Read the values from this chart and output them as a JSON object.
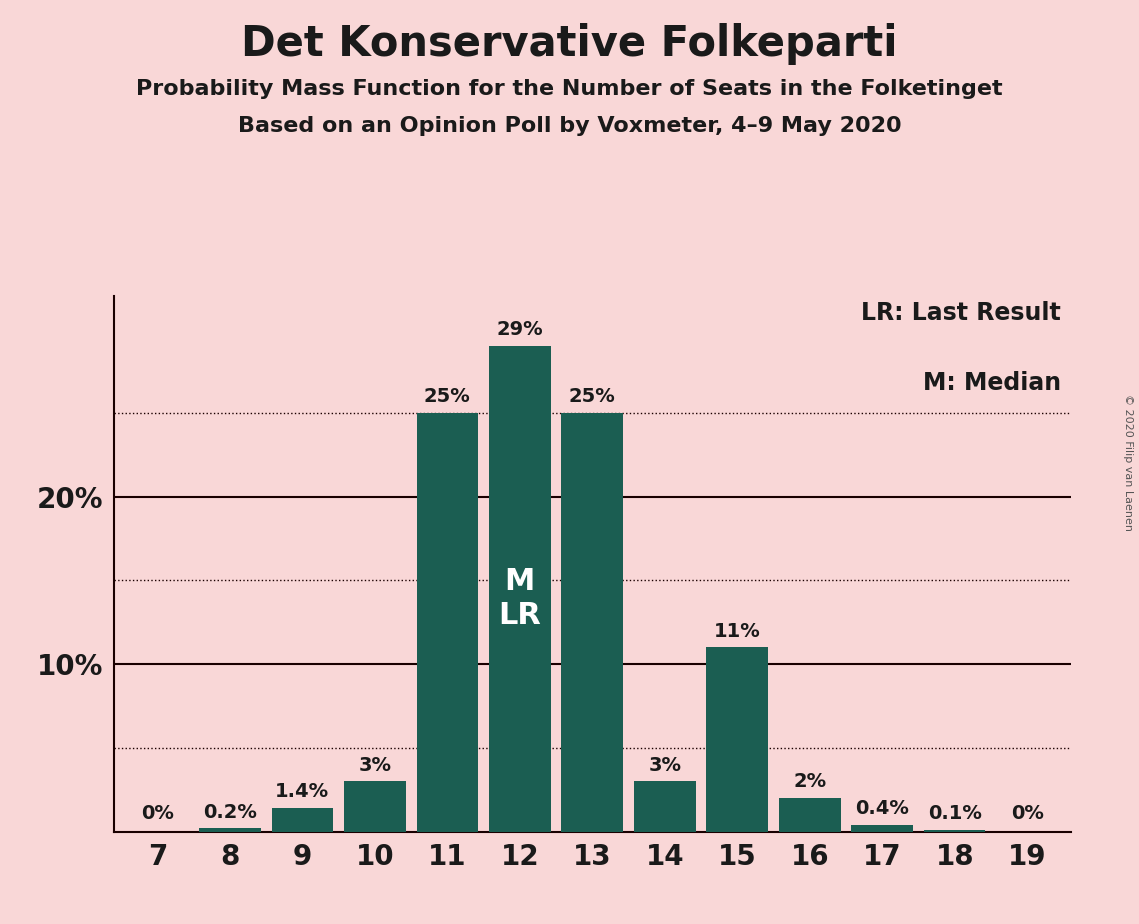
{
  "title": "Det Konservative Folkeparti",
  "subtitle1": "Probability Mass Function for the Number of Seats in the Folketinget",
  "subtitle2": "Based on an Opinion Poll by Voxmeter, 4–9 May 2020",
  "copyright": "© 2020 Filip van Laenen",
  "seats": [
    7,
    8,
    9,
    10,
    11,
    12,
    13,
    14,
    15,
    16,
    17,
    18,
    19
  ],
  "probabilities": [
    0.0,
    0.2,
    1.4,
    3.0,
    25.0,
    29.0,
    25.0,
    3.0,
    11.0,
    2.0,
    0.4,
    0.1,
    0.0
  ],
  "bar_labels": [
    "0%",
    "0.2%",
    "1.4%",
    "3%",
    "25%",
    "29%",
    "25%",
    "3%",
    "11%",
    "2%",
    "0.4%",
    "0.1%",
    "0%"
  ],
  "bar_color": "#1b5e52",
  "background_color": "#f9d7d7",
  "title_color": "#1a1a1a",
  "axis_label_color": "#1a1a1a",
  "median_seat": 12,
  "lr_seat": 12,
  "legend_line1": "LR: Last Result",
  "legend_line2": "M: Median",
  "yticks_solid": [
    10,
    20
  ],
  "yticks_dotted": [
    5,
    15,
    25
  ],
  "ylim": [
    0,
    32
  ],
  "solid_line_color": "#1a0000",
  "dotted_line_color": "#1a0000",
  "bar_label_fontsize": 14,
  "tick_fontsize": 20,
  "legend_fontsize": 17,
  "title_fontsize": 30,
  "subtitle_fontsize": 16
}
